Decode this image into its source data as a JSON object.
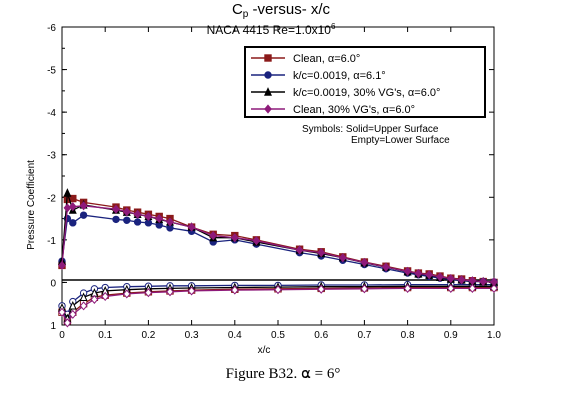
{
  "caption": "Figure B32.  ⍺ = 6°",
  "chart_data": {
    "type": "line",
    "title_main": "C",
    "title_sub": "p",
    "title_rest": " -versus- x/c",
    "subtitle": "NACA 4415    Re=1.0x10",
    "subtitle_exp": "6",
    "xlabel": "x/c",
    "ylabel": "Pressure Coefficient",
    "xlim": [
      0,
      1.0
    ],
    "ylim": [
      1,
      -6
    ],
    "y_inverted": true,
    "xticks": [
      "0",
      "0.1",
      "0.2",
      "0.3",
      "0.4",
      "0.5",
      "0.6",
      "0.7",
      "0.8",
      "0.9",
      "1.0"
    ],
    "yticks": [
      "-6",
      "-5",
      "-4",
      "-3",
      "-2",
      "-1",
      "0",
      "1"
    ],
    "legend_position": "top-right",
    "note_line1": "Symbols:  Solid=Upper Surface",
    "note_line2": "Empty=Lower Surface",
    "series": [
      {
        "name": "Clean, α=6.0°",
        "color": "#8b1a1a",
        "marker": "square",
        "upper": {
          "x": [
            0.0,
            0.0125,
            0.025,
            0.05,
            0.125,
            0.15,
            0.175,
            0.2,
            0.225,
            0.25,
            0.3,
            0.35,
            0.4,
            0.45,
            0.55,
            0.6,
            0.65,
            0.7,
            0.75,
            0.8,
            0.825,
            0.85,
            0.875,
            0.9,
            0.925,
            0.95,
            0.975,
            1.0
          ],
          "y": [
            -0.4,
            -1.95,
            -1.97,
            -1.88,
            -1.77,
            -1.7,
            -1.65,
            -1.6,
            -1.55,
            -1.5,
            -1.3,
            -1.13,
            -1.1,
            -1.0,
            -0.78,
            -0.72,
            -0.6,
            -0.48,
            -0.38,
            -0.27,
            -0.22,
            -0.2,
            -0.15,
            -0.1,
            -0.08,
            -0.04,
            -0.02,
            0.0
          ]
        },
        "lower": {
          "x": [
            0.0,
            0.0125,
            0.025,
            0.05,
            0.075,
            0.1,
            0.15,
            0.2,
            0.25,
            0.3,
            0.4,
            0.5,
            0.6,
            0.7,
            0.8,
            0.9,
            0.95,
            1.0
          ],
          "y": [
            0.7,
            0.9,
            0.7,
            0.5,
            0.35,
            0.3,
            0.25,
            0.22,
            0.2,
            0.18,
            0.16,
            0.15,
            0.14,
            0.13,
            0.12,
            0.12,
            0.12,
            0.12
          ]
        }
      },
      {
        "name": "k/c=0.0019, α=6.1°",
        "color": "#1a237e",
        "marker": "circle",
        "upper": {
          "x": [
            0.0,
            0.0125,
            0.025,
            0.05,
            0.125,
            0.15,
            0.175,
            0.2,
            0.225,
            0.25,
            0.3,
            0.35,
            0.4,
            0.45,
            0.55,
            0.6,
            0.65,
            0.7,
            0.75,
            0.8,
            0.825,
            0.85,
            0.875,
            0.9,
            0.925,
            0.95,
            0.975,
            1.0
          ],
          "y": [
            -0.5,
            -1.5,
            -1.4,
            -1.58,
            -1.48,
            -1.46,
            -1.42,
            -1.4,
            -1.35,
            -1.28,
            -1.2,
            -0.95,
            -1.0,
            -0.9,
            -0.7,
            -0.62,
            -0.52,
            -0.42,
            -0.32,
            -0.22,
            -0.18,
            -0.14,
            -0.1,
            -0.07,
            -0.04,
            -0.02,
            -0.02,
            -0.01
          ]
        },
        "lower": {
          "x": [
            0.0,
            0.0125,
            0.025,
            0.05,
            0.075,
            0.1,
            0.15,
            0.2,
            0.25,
            0.3,
            0.4,
            0.5,
            0.6,
            0.7,
            0.8,
            0.9,
            0.95,
            1.0
          ],
          "y": [
            0.55,
            0.75,
            0.45,
            0.25,
            0.15,
            0.12,
            0.1,
            0.09,
            0.08,
            0.08,
            0.07,
            0.07,
            0.06,
            0.06,
            0.05,
            0.05,
            0.05,
            0.05
          ]
        }
      },
      {
        "name": "k/c=0.0019, 30% VG's, α=6.0°",
        "color": "#000000",
        "marker": "triangle",
        "upper": {
          "x": [
            0.0,
            0.0125,
            0.025,
            0.05,
            0.125,
            0.15,
            0.175,
            0.2,
            0.225,
            0.25,
            0.3,
            0.35,
            0.4,
            0.45,
            0.55,
            0.6,
            0.65,
            0.7,
            0.75,
            0.8,
            0.825,
            0.85,
            0.875,
            0.9,
            0.925,
            0.95,
            0.975,
            1.0
          ],
          "y": [
            -0.5,
            -2.1,
            -1.7,
            -1.82,
            -1.7,
            -1.65,
            -1.6,
            -1.55,
            -1.48,
            -1.42,
            -1.3,
            -1.05,
            -1.05,
            -0.95,
            -0.76,
            -0.68,
            -0.58,
            -0.46,
            -0.36,
            -0.25,
            -0.2,
            -0.17,
            -0.12,
            -0.08,
            -0.06,
            -0.03,
            -0.02,
            -0.01
          ]
        },
        "lower": {
          "x": [
            0.0,
            0.0125,
            0.025,
            0.05,
            0.075,
            0.1,
            0.15,
            0.2,
            0.25,
            0.3,
            0.4,
            0.5,
            0.6,
            0.7,
            0.8,
            0.9,
            0.95,
            1.0
          ],
          "y": [
            0.6,
            0.85,
            0.55,
            0.35,
            0.25,
            0.2,
            0.17,
            0.15,
            0.14,
            0.13,
            0.12,
            0.11,
            0.1,
            0.1,
            0.09,
            0.09,
            0.09,
            0.09
          ]
        }
      },
      {
        "name": "Clean, 30% VG's, α=6.0°",
        "color": "#8e1a7a",
        "marker": "diamond",
        "upper": {
          "x": [
            0.0,
            0.0125,
            0.025,
            0.05,
            0.125,
            0.15,
            0.175,
            0.2,
            0.225,
            0.25,
            0.3,
            0.35,
            0.4,
            0.45,
            0.55,
            0.6,
            0.65,
            0.7,
            0.75,
            0.8,
            0.825,
            0.85,
            0.875,
            0.9,
            0.925,
            0.95,
            0.975,
            1.0
          ],
          "y": [
            -0.4,
            -1.75,
            -1.78,
            -1.8,
            -1.72,
            -1.66,
            -1.6,
            -1.55,
            -1.5,
            -1.42,
            -1.3,
            -1.1,
            -1.05,
            -0.98,
            -0.76,
            -0.7,
            -0.58,
            -0.47,
            -0.36,
            -0.26,
            -0.21,
            -0.18,
            -0.13,
            -0.09,
            -0.06,
            -0.04,
            -0.02,
            -0.01
          ]
        },
        "lower": {
          "x": [
            0.0,
            0.0125,
            0.025,
            0.05,
            0.075,
            0.1,
            0.15,
            0.2,
            0.25,
            0.3,
            0.4,
            0.5,
            0.6,
            0.7,
            0.8,
            0.9,
            0.95,
            1.0
          ],
          "y": [
            0.7,
            0.95,
            0.75,
            0.55,
            0.4,
            0.33,
            0.27,
            0.24,
            0.22,
            0.2,
            0.18,
            0.17,
            0.16,
            0.15,
            0.14,
            0.14,
            0.14,
            0.14
          ]
        }
      }
    ]
  }
}
